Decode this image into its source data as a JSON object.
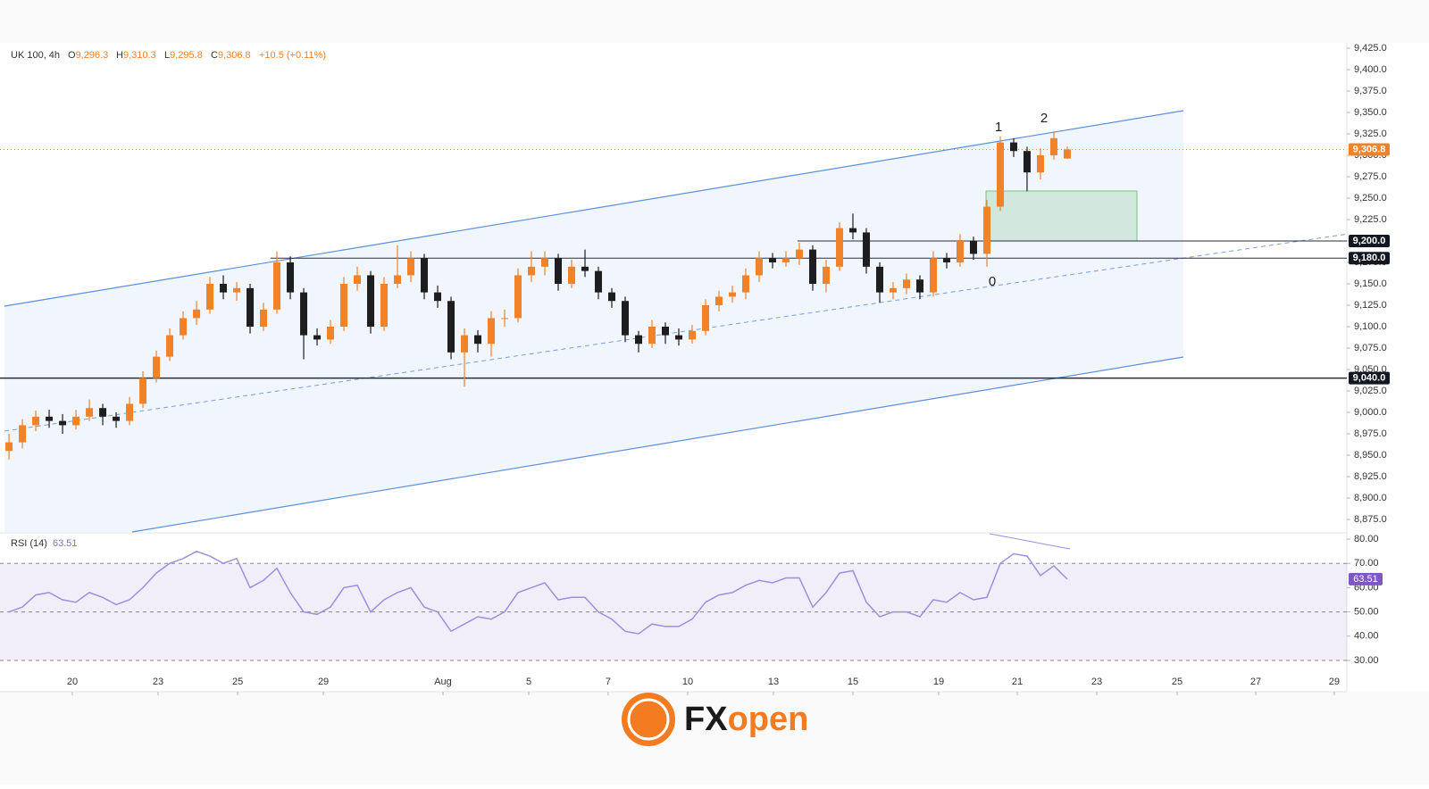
{
  "header": {
    "symbol": "UK 100, 4h",
    "o_label": "O",
    "open": "9,296.3",
    "h_label": "H",
    "high": "9,310.3",
    "l_label": "L",
    "low": "9,295.8",
    "c_label": "C",
    "close": "9,306.8",
    "change": "+10.5 (+0.11%)"
  },
  "annotations": [
    "1",
    "2",
    "0"
  ],
  "brand": {
    "fx": "FX",
    "open": "open"
  },
  "chart_data": [
    {
      "type": "candlestick",
      "up_color": "#f0822a",
      "down_color": "#1e1e1e",
      "ohlc": [
        [
          8955,
          8975,
          8945,
          8965
        ],
        [
          8965,
          8992,
          8958,
          8985
        ],
        [
          8985,
          9002,
          8978,
          8995
        ],
        [
          8995,
          9003,
          8982,
          8990
        ],
        [
          8990,
          8998,
          8975,
          8985
        ],
        [
          8985,
          9003,
          8980,
          8995
        ],
        [
          8995,
          9015,
          8990,
          9005
        ],
        [
          9005,
          9010,
          8985,
          8995
        ],
        [
          8995,
          9000,
          8982,
          8990
        ],
        [
          8990,
          9018,
          8985,
          9010
        ],
        [
          9010,
          9048,
          9005,
          9040
        ],
        [
          9040,
          9072,
          9035,
          9065
        ],
        [
          9065,
          9098,
          9060,
          9090
        ],
        [
          9090,
          9118,
          9085,
          9110
        ],
        [
          9110,
          9130,
          9102,
          9120
        ],
        [
          9120,
          9158,
          9115,
          9150
        ],
        [
          9150,
          9160,
          9132,
          9140
        ],
        [
          9140,
          9152,
          9130,
          9145
        ],
        [
          9145,
          9150,
          9092,
          9100
        ],
        [
          9100,
          9128,
          9095,
          9120
        ],
        [
          9120,
          9188,
          9115,
          9175
        ],
        [
          9175,
          9182,
          9132,
          9140
        ],
        [
          9140,
          9145,
          9062,
          9090
        ],
        [
          9090,
          9098,
          9078,
          9085
        ],
        [
          9085,
          9108,
          9080,
          9100
        ],
        [
          9100,
          9158,
          9095,
          9150
        ],
        [
          9150,
          9170,
          9142,
          9160
        ],
        [
          9160,
          9165,
          9092,
          9100
        ],
        [
          9100,
          9158,
          9095,
          9150
        ],
        [
          9150,
          9195,
          9145,
          9160
        ],
        [
          9160,
          9188,
          9152,
          9180
        ],
        [
          9180,
          9185,
          9132,
          9140
        ],
        [
          9140,
          9148,
          9122,
          9130
        ],
        [
          9130,
          9135,
          9062,
          9070
        ],
        [
          9070,
          9098,
          9030,
          9090
        ],
        [
          9090,
          9096,
          9070,
          9080
        ],
        [
          9080,
          9118,
          9065,
          9110
        ],
        [
          9110,
          9120,
          9100,
          9110
        ],
        [
          9110,
          9168,
          9105,
          9160
        ],
        [
          9160,
          9188,
          9152,
          9170
        ],
        [
          9170,
          9188,
          9160,
          9180
        ],
        [
          9180,
          9185,
          9142,
          9150
        ],
        [
          9150,
          9178,
          9145,
          9170
        ],
        [
          9170,
          9190,
          9158,
          9165
        ],
        [
          9165,
          9170,
          9132,
          9140
        ],
        [
          9140,
          9145,
          9122,
          9130
        ],
        [
          9130,
          9135,
          9082,
          9090
        ],
        [
          9090,
          9095,
          9070,
          9080
        ],
        [
          9080,
          9108,
          9075,
          9100
        ],
        [
          9100,
          9105,
          9080,
          9090
        ],
        [
          9090,
          9098,
          9078,
          9085
        ],
        [
          9085,
          9102,
          9080,
          9095
        ],
        [
          9095,
          9132,
          9090,
          9125
        ],
        [
          9125,
          9142,
          9118,
          9135
        ],
        [
          9135,
          9148,
          9128,
          9140
        ],
        [
          9140,
          9168,
          9132,
          9160
        ],
        [
          9160,
          9188,
          9152,
          9180
        ],
        [
          9180,
          9186,
          9168,
          9175
        ],
        [
          9175,
          9188,
          9170,
          9180
        ],
        [
          9180,
          9198,
          9172,
          9190
        ],
        [
          9190,
          9195,
          9142,
          9150
        ],
        [
          9150,
          9178,
          9140,
          9170
        ],
        [
          9170,
          9222,
          9165,
          9215
        ],
        [
          9215,
          9232,
          9202,
          9210
        ],
        [
          9210,
          9215,
          9162,
          9170
        ],
        [
          9170,
          9175,
          9128,
          9140
        ],
        [
          9140,
          9152,
          9132,
          9145
        ],
        [
          9145,
          9162,
          9138,
          9155
        ],
        [
          9155,
          9160,
          9132,
          9140
        ],
        [
          9140,
          9188,
          9135,
          9180
        ],
        [
          9180,
          9186,
          9168,
          9175
        ],
        [
          9175,
          9208,
          9170,
          9200
        ],
        [
          9200,
          9205,
          9178,
          9185
        ],
        [
          9185,
          9248,
          9170,
          9240
        ],
        [
          9240,
          9322,
          9235,
          9315
        ],
        [
          9315,
          9320,
          9298,
          9305
        ],
        [
          9305,
          9310,
          9258,
          9280
        ],
        [
          9280,
          9308,
          9272,
          9300
        ],
        [
          9300,
          9328,
          9295,
          9320
        ],
        [
          9296.3,
          9310.3,
          9295.8,
          9306.8
        ]
      ],
      "xlim": [
        -0.67,
        99.87
      ],
      "xticks": [
        {
          "value": 4.73,
          "label": "20"
        },
        {
          "value": 11.13,
          "label": "23"
        },
        {
          "value": 17.07,
          "label": "25"
        },
        {
          "value": 23.47,
          "label": "29"
        },
        {
          "value": 32.4,
          "label": "Aug"
        },
        {
          "value": 38.8,
          "label": "5"
        },
        {
          "value": 44.73,
          "label": "7"
        },
        {
          "value": 50.67,
          "label": "10"
        },
        {
          "value": 57.07,
          "label": "13"
        },
        {
          "value": 63,
          "label": "15"
        },
        {
          "value": 69.4,
          "label": "19"
        },
        {
          "value": 75.27,
          "label": "21"
        },
        {
          "value": 81.2,
          "label": "23"
        },
        {
          "value": 87.2,
          "label": "25"
        },
        {
          "value": 93.07,
          "label": "27"
        },
        {
          "value": 98.93,
          "label": "29"
        }
      ],
      "ylim": [
        8859.4,
        9431.25
      ],
      "yticks": [
        {
          "value": 8875,
          "label": "8,875.0"
        },
        {
          "value": 8900,
          "label": "8,900.0"
        },
        {
          "value": 8925,
          "label": "8,925.0"
        },
        {
          "value": 8950,
          "label": "8,950.0"
        },
        {
          "value": 8975,
          "label": "8,975.0"
        },
        {
          "value": 9000,
          "label": "9,000.0"
        },
        {
          "value": 9025,
          "label": "9,025.0"
        },
        {
          "value": 9050,
          "label": "9,050.0"
        },
        {
          "value": 9075,
          "label": "9,075.0"
        },
        {
          "value": 9100,
          "label": "9,100.0"
        },
        {
          "value": 9125,
          "label": "9,125.0"
        },
        {
          "value": 9150,
          "label": "9,150.0"
        },
        {
          "value": 9175,
          "label": "9,175.0"
        },
        {
          "value": 9200,
          "label": "9,200.0"
        },
        {
          "value": 9225,
          "label": "9,225.0"
        },
        {
          "value": 9250,
          "label": "9,250.0"
        },
        {
          "value": 9275,
          "label": "9,275.0"
        },
        {
          "value": 9300,
          "label": "9,300.0"
        },
        {
          "value": 9325,
          "label": "9,325.0"
        },
        {
          "value": 9350,
          "label": "9,350.0"
        },
        {
          "value": 9375,
          "label": "9,375.0"
        },
        {
          "value": 9400,
          "label": "9,400.0"
        },
        {
          "value": 9425,
          "label": "9,425.0"
        }
      ],
      "levels": [
        {
          "value": 9200,
          "label": "9,200.0"
        },
        {
          "value": 9180,
          "label": "9,180.0"
        },
        {
          "value": 9040,
          "label": "9,040.0"
        }
      ],
      "last": {
        "value": 9306.8,
        "label": "9,306.8"
      },
      "last_color": "#f0822a"
    },
    {
      "type": "line",
      "name": "RSI (14)",
      "value_label": "63.51",
      "color": "#9d8fdd",
      "values": [
        50,
        52,
        57,
        58,
        55,
        54,
        58,
        56,
        53,
        55,
        60,
        66,
        70,
        72,
        75,
        73,
        70,
        72,
        60,
        63,
        68,
        58,
        50,
        49,
        52,
        60,
        61,
        50,
        55,
        58,
        60,
        52,
        50,
        42,
        45,
        48,
        47,
        50,
        58,
        60,
        62,
        55,
        56,
        56,
        50,
        47,
        42,
        41,
        45,
        44,
        44,
        47,
        54,
        57,
        58,
        61,
        63,
        62,
        64,
        64,
        52,
        58,
        66,
        67,
        54,
        48,
        50,
        50,
        48,
        55,
        54,
        58,
        55,
        56,
        70,
        74,
        73,
        65,
        69,
        63.51
      ],
      "ylim": [
        17.1,
        82.6
      ],
      "yticks": [
        {
          "value": 30,
          "label": "30.00"
        },
        {
          "value": 40,
          "label": "40.00"
        },
        {
          "value": 50,
          "label": "50.00"
        },
        {
          "value": 60,
          "label": "60.00"
        },
        {
          "value": 70,
          "label": "70.00"
        },
        {
          "value": 80,
          "label": "80.00"
        }
      ],
      "levels": [
        70,
        50,
        30
      ]
    }
  ]
}
